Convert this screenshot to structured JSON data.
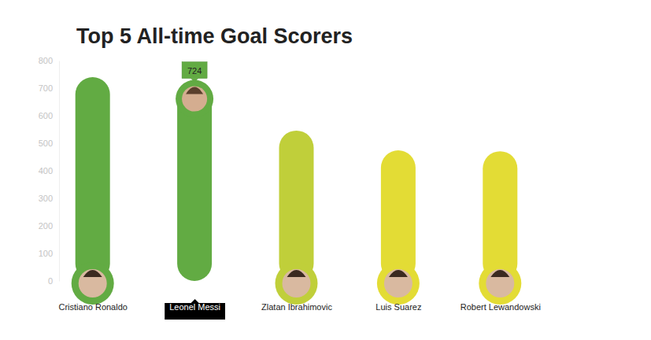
{
  "chart_data": {
    "type": "bar",
    "title": "Top 5 All-time Goal Scorers",
    "categories": [
      "Cristiano Ronaldo",
      "Leonel Messi",
      "Zlatan Ibrahimovic",
      "Luis Suarez",
      "Robert Lewandowski"
    ],
    "values": [
      740,
      724,
      546,
      474,
      471
    ],
    "colors": [
      "#62ab43",
      "#62ab43",
      "#c0cf3a",
      "#e3dc35",
      "#e3dc35"
    ],
    "data_labels": true,
    "value_labels": [
      null,
      "724",
      null,
      null,
      null
    ],
    "ylim": [
      0,
      800
    ],
    "yticks": [
      0,
      100,
      200,
      300,
      400,
      500,
      600,
      700,
      800
    ],
    "grid": false
  }
}
